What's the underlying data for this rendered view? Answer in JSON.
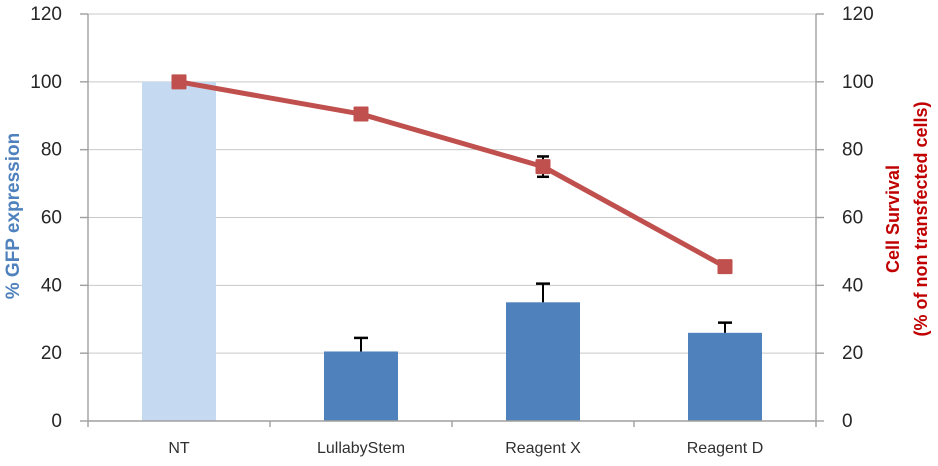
{
  "chart_data": {
    "type": "bar",
    "subtype": "bar-line-combo",
    "categories": [
      "NT",
      "LullabyStem",
      "Reagent X",
      "Reagent D"
    ],
    "series": [
      {
        "name": "% GFP expression",
        "chart_type": "bar",
        "values": [
          100,
          20.5,
          35,
          26
        ],
        "error_plus": [
          0,
          4,
          5.5,
          3
        ],
        "bar_colors": [
          "#c5d9f1",
          "#4f81bd",
          "#4f81bd",
          "#4f81bd"
        ]
      },
      {
        "name": "Cell Survival",
        "chart_type": "line",
        "values": [
          100,
          90.5,
          75,
          45.5
        ],
        "error_plus": [
          0,
          0,
          3,
          0
        ],
        "error_minus": [
          0,
          0,
          3,
          0
        ],
        "color": "#c0504d",
        "marker": "square"
      }
    ],
    "left_axis": {
      "title": "% GFP expression",
      "title_color": "#4f81bd",
      "ticks": [
        0,
        20,
        40,
        60,
        80,
        100,
        120
      ],
      "range": [
        0,
        120
      ]
    },
    "right_axis": {
      "title_line1": "Cell Survival",
      "title_line2": "(% of non transfected cells)",
      "title_color": "#c00000",
      "ticks": [
        0,
        20,
        40,
        60,
        80,
        100,
        120
      ],
      "range": [
        0,
        120
      ]
    },
    "grid": true,
    "legend_position": "none",
    "colors": {
      "gridline": "#c9c9c9",
      "axis": "#9f9f9f",
      "tick_label": "#262626",
      "category_label": "#303030",
      "error_bar": "#000000"
    }
  }
}
